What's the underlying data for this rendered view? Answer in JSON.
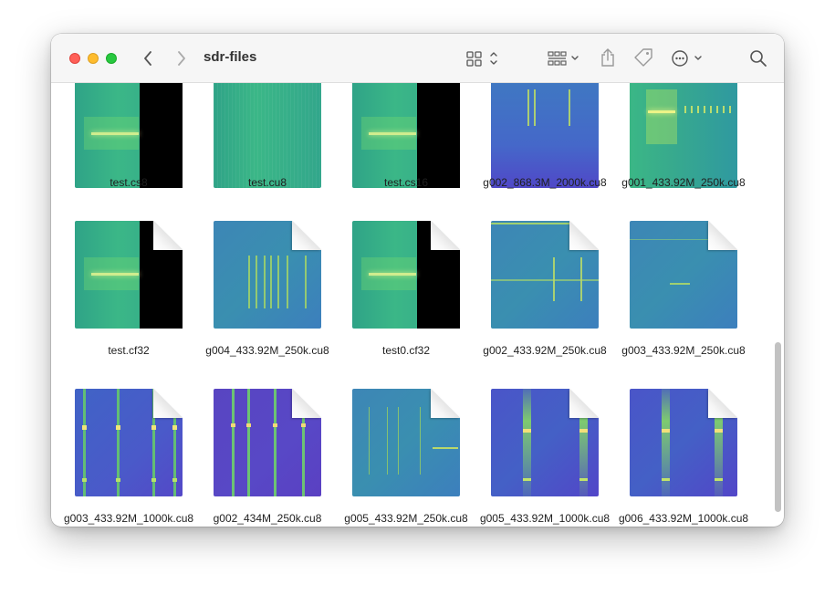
{
  "window": {
    "title": "sdr-files"
  },
  "toolbar": {
    "back": "chevron-left-icon",
    "forward": "chevron-right-icon",
    "view": "grid-view-icon",
    "group": "group-by-icon",
    "share": "share-icon",
    "tag": "tag-icon",
    "more": "more-icon",
    "search": "search-icon"
  },
  "files": [
    {
      "name": "test.cs8",
      "style": "green-black"
    },
    {
      "name": "test.cu8",
      "style": "green"
    },
    {
      "name": "test.cs16",
      "style": "green-black"
    },
    {
      "name": "g002_868.3M_2000k.cu8",
      "style": "blue-bars"
    },
    {
      "name": "g001_433.92M_250k.cu8",
      "style": "green-bright"
    },
    {
      "name": "test.cf32",
      "style": "green-black"
    },
    {
      "name": "g004_433.92M_250k.cu8",
      "style": "teal-bars"
    },
    {
      "name": "test0.cf32",
      "style": "green-black"
    },
    {
      "name": "g002_433.92M_250k.cu8",
      "style": "teal-lines"
    },
    {
      "name": "g003_433.92M_250k.cu8",
      "style": "teal-faint"
    },
    {
      "name": "g003_433.92M_1000k.cu8",
      "style": "blue-stripes"
    },
    {
      "name": "g002_434M_250k.cu8",
      "style": "purple-stripes"
    },
    {
      "name": "g005_433.92M_250k.cu8",
      "style": "teal-dots"
    },
    {
      "name": "g005_433.92M_1000k.cu8",
      "style": "blue-two"
    },
    {
      "name": "g006_433.92M_1000k.cu8",
      "style": "blue-two-b"
    }
  ],
  "colors": {
    "red": "#ff5f57",
    "yellow": "#febc2e",
    "green": "#28c840"
  }
}
